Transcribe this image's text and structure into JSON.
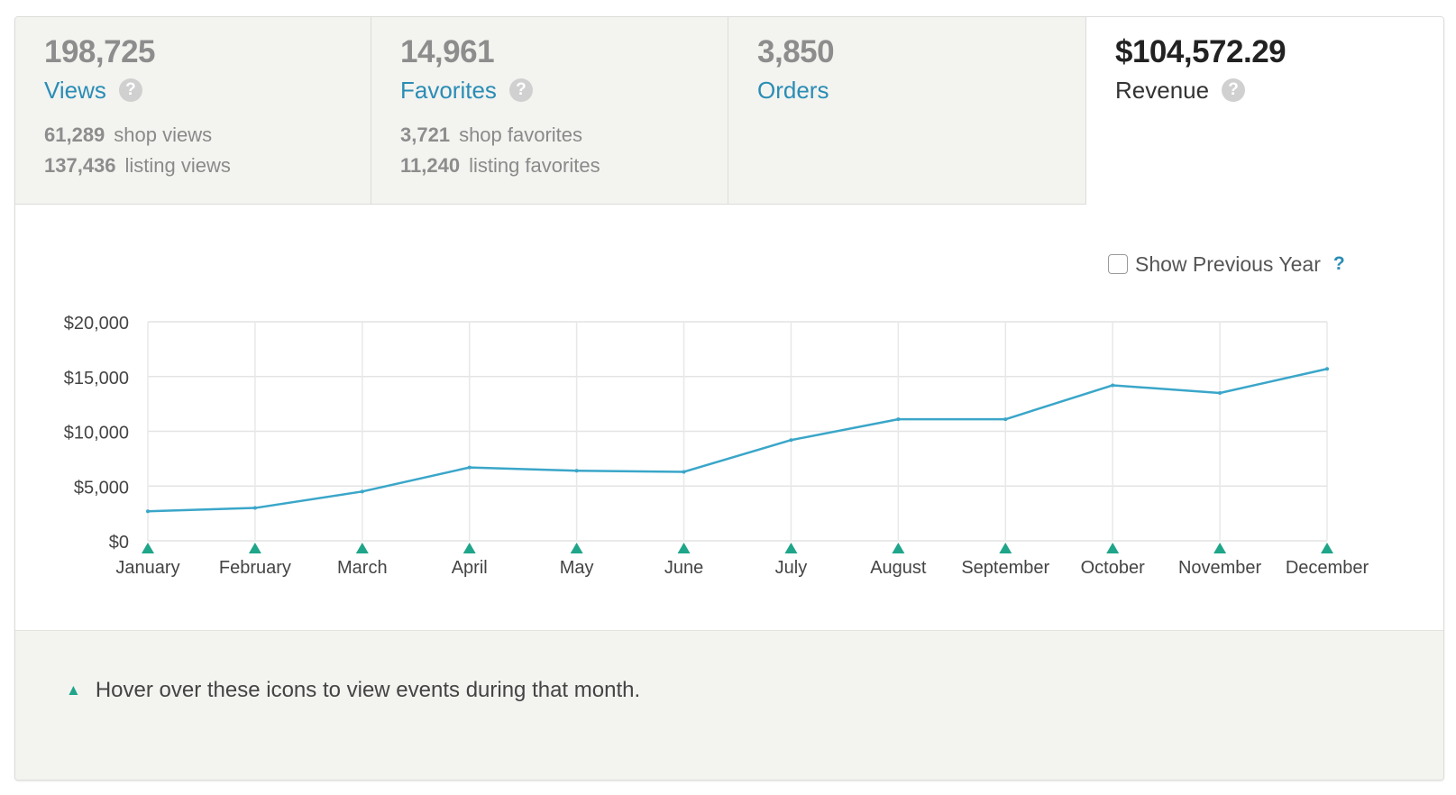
{
  "tabs": [
    {
      "value": "198,725",
      "label": "Views",
      "help": "?",
      "sub": [
        {
          "num": "61,289",
          "text": "shop views"
        },
        {
          "num": "137,436",
          "text": "listing views"
        }
      ]
    },
    {
      "value": "14,961",
      "label": "Favorites",
      "help": "?",
      "sub": [
        {
          "num": "3,721",
          "text": "shop favorites"
        },
        {
          "num": "11,240",
          "text": "listing favorites"
        }
      ]
    },
    {
      "value": "3,850",
      "label": "Orders"
    },
    {
      "value": "$104,572.29",
      "label": "Revenue",
      "help": "?",
      "active": true
    }
  ],
  "toggle": {
    "label": "Show Previous Year",
    "help": "?",
    "checked": false
  },
  "chart_data": {
    "type": "line",
    "categories": [
      "January",
      "February",
      "March",
      "April",
      "May",
      "June",
      "July",
      "August",
      "September",
      "October",
      "November",
      "December"
    ],
    "series": [
      {
        "values": [
          2700,
          3000,
          4500,
          6700,
          6400,
          6300,
          9200,
          11100,
          11100,
          14200,
          13500,
          15700
        ]
      }
    ],
    "yticks": [
      "$0",
      "$5,000",
      "$10,000",
      "$15,000",
      "$20,000"
    ],
    "ylim": [
      0,
      20000
    ],
    "grid": true,
    "line_color": "#3aa6c9",
    "marker_color": "#1fa58a",
    "event_icon": "triangle-icon"
  },
  "footer": {
    "icon": "triangle-icon",
    "note": "Hover over these icons to view events during that month."
  }
}
